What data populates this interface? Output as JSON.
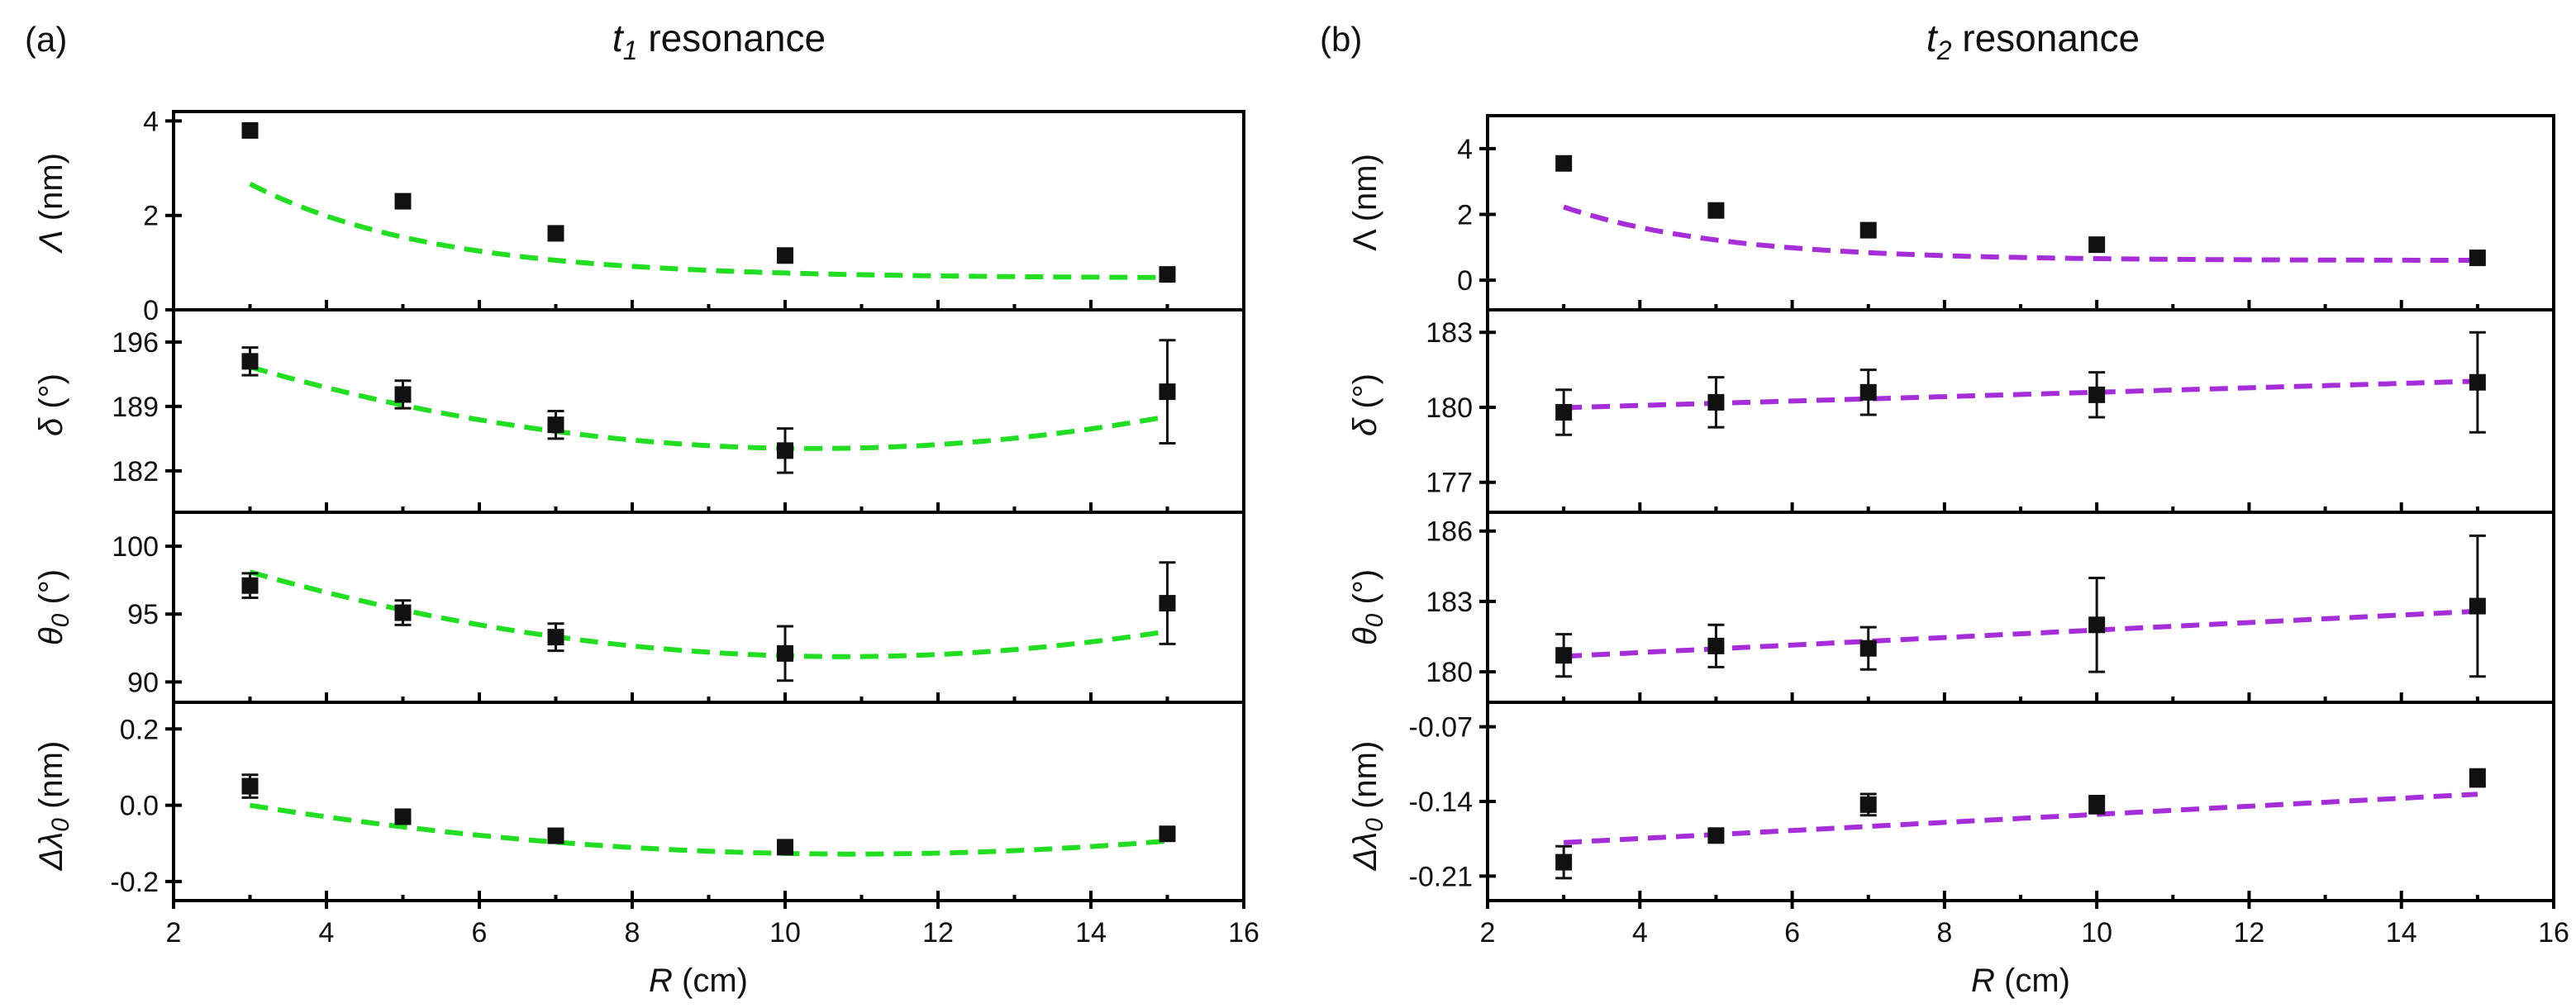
{
  "chart_data": [
    {
      "type": "scatter",
      "panel_label": "(a)",
      "title_symbol": "t",
      "title_sub": "1",
      "title_rest": " resonance",
      "fit_color": "#22dd22",
      "xlabel_symbol": "R",
      "xlabel_rest": " (cm)",
      "xlim": [
        2,
        16
      ],
      "xticks": [
        "2",
        "4",
        "6",
        "8",
        "10",
        "12",
        "14",
        "16"
      ],
      "xtick_values": [
        2,
        4,
        6,
        8,
        10,
        12,
        14,
        16
      ],
      "subplots": [
        {
          "ylabel_symbol": "Λ",
          "ylabel_rest": " (nm)",
          "ylim": [
            0,
            4.2
          ],
          "yticks": [
            "0",
            "2",
            "4"
          ],
          "ytick_values": [
            0,
            2,
            4
          ],
          "x": [
            3,
            5,
            7,
            10,
            15
          ],
          "y": [
            3.8,
            2.3,
            1.62,
            1.15,
            0.75
          ],
          "err": [
            0.08,
            0.08,
            0.08,
            0.08,
            0.08
          ],
          "fit_type": "exp",
          "fit_params": [
            0.672,
            6.95,
            0.416
          ]
        },
        {
          "ylabel_symbol": "δ",
          "ylabel_rest": " (°)",
          "ylim": [
            177.5,
            199.5
          ],
          "yticks": [
            "182",
            "189",
            "196"
          ],
          "ytick_values": [
            182,
            189,
            196
          ],
          "x": [
            3,
            5,
            7,
            10,
            15
          ],
          "y": [
            193.9,
            190.3,
            187.0,
            184.2,
            190.6
          ],
          "err": [
            1.5,
            1.5,
            1.5,
            2.4,
            5.6
          ],
          "fit_type": "poly2",
          "fit_params": [
            0.1627,
            -3.3776,
            201.96
          ]
        },
        {
          "ylabel_symbol": "θ",
          "ylabel_sub": "0",
          "ylabel_rest": " (°)",
          "ylim": [
            88.5,
            102.5
          ],
          "yticks": [
            "90",
            "95",
            "100"
          ],
          "ytick_values": [
            90,
            95,
            100
          ],
          "x": [
            3,
            5,
            7,
            10,
            15
          ],
          "y": [
            97.1,
            95.1,
            93.3,
            92.1,
            95.8
          ],
          "err": [
            0.9,
            0.9,
            1.0,
            2.0,
            3.0
          ],
          "fit_type": "poly2",
          "fit_params": [
            0.1035,
            -2.2275,
            103.85
          ]
        },
        {
          "ylabel_symbol": "Δλ",
          "ylabel_sub": "0",
          "ylabel_rest": " (nm)",
          "ylim": [
            -0.25,
            0.27
          ],
          "yticks": [
            "-0.2",
            "0.0",
            "0.2"
          ],
          "ytick_values": [
            -0.2,
            0.0,
            0.2
          ],
          "x": [
            3,
            5,
            7,
            10,
            15
          ],
          "y": [
            0.05,
            -0.03,
            -0.08,
            -0.11,
            -0.075
          ],
          "err": [
            0.03,
            0.015,
            0.015,
            0.015,
            0.015
          ],
          "fit_type": "poly2",
          "fit_params": [
            0.002047,
            -0.04464,
            0.1154
          ]
        }
      ]
    },
    {
      "type": "scatter",
      "panel_label": "(b)",
      "title_symbol": "t",
      "title_sub": "2",
      "title_rest": " resonance",
      "fit_color": "#a62ed8",
      "xlabel_symbol": "R",
      "xlabel_rest": " (cm)",
      "xlim": [
        2,
        16
      ],
      "xticks": [
        "2",
        "4",
        "6",
        "8",
        "10",
        "12",
        "14",
        "16"
      ],
      "xtick_values": [
        2,
        4,
        6,
        8,
        10,
        12,
        14,
        16
      ],
      "subplots": [
        {
          "ylabel_symbol": "Λ",
          "ylabel_rest": " (nm)",
          "ylim": [
            -0.9,
            5.0
          ],
          "yticks": [
            "0",
            "2",
            "4"
          ],
          "ytick_values": [
            0,
            2,
            4
          ],
          "x": [
            3,
            5,
            7,
            10,
            15
          ],
          "y": [
            3.55,
            2.12,
            1.52,
            1.08,
            0.68
          ],
          "err": [
            0.1,
            0.1,
            0.1,
            0.1,
            0.1
          ],
          "fit_type": "exp",
          "fit_params": [
            0.6,
            6.86,
            0.48
          ]
        },
        {
          "ylabel_symbol": "δ",
          "ylabel_rest": " (°)",
          "ylim": [
            175.8,
            183.9
          ],
          "yticks": [
            "177",
            "180",
            "183"
          ],
          "ytick_values": [
            177,
            180,
            183
          ],
          "x": [
            3,
            5,
            7,
            10,
            15
          ],
          "y": [
            179.8,
            180.2,
            180.6,
            180.5,
            181.0
          ],
          "err": [
            0.9,
            1.0,
            0.9,
            0.9,
            2.0
          ],
          "fit_type": "linear",
          "fit_params": [
            0.0883,
            179.72
          ]
        },
        {
          "ylabel_symbol": "θ",
          "ylabel_sub": "0",
          "ylabel_rest": " (°)",
          "ylim": [
            178.7,
            186.8
          ],
          "yticks": [
            "180",
            "183",
            "186"
          ],
          "ytick_values": [
            180,
            183,
            186
          ],
          "x": [
            3,
            5,
            7,
            10,
            15
          ],
          "y": [
            180.7,
            181.1,
            181.0,
            182.0,
            182.8
          ],
          "err": [
            0.9,
            0.9,
            0.9,
            2.0,
            3.0
          ],
          "fit_type": "linear",
          "fit_params": [
            0.16,
            180.18
          ]
        },
        {
          "ylabel_symbol": "Δλ",
          "ylabel_sub": "0",
          "ylabel_rest": " (nm)",
          "ylim": [
            -0.233,
            -0.047
          ],
          "yticks": [
            "-0.21",
            "-0.14",
            "-0.07"
          ],
          "ytick_values": [
            -0.21,
            -0.14,
            -0.07
          ],
          "x": [
            3,
            5,
            7,
            10,
            15
          ],
          "y": [
            -0.197,
            -0.172,
            -0.143,
            -0.143,
            -0.118
          ],
          "err": [
            0.015,
            0.006,
            0.01,
            0.008,
            0.008
          ],
          "fit_type": "linear",
          "fit_params": [
            0.003785,
            -0.18995
          ]
        }
      ]
    }
  ]
}
